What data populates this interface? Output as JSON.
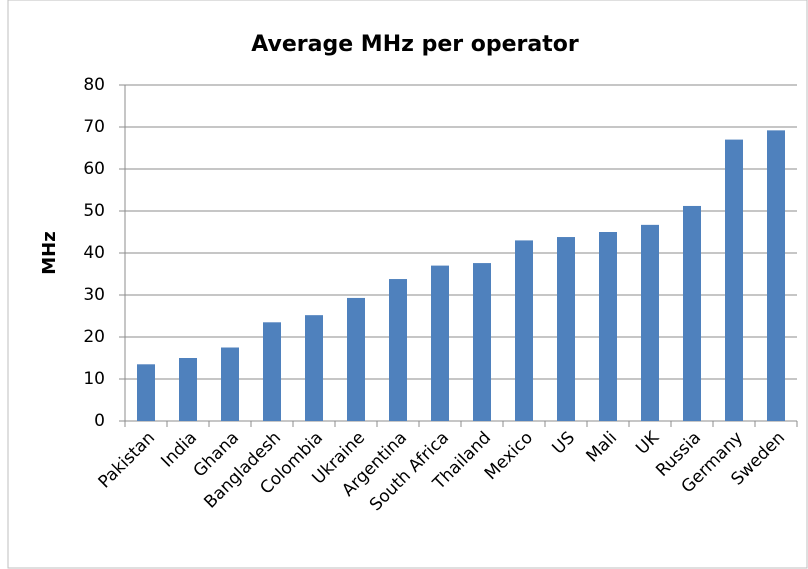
{
  "chart_data": {
    "type": "bar",
    "title": "Average MHz per operator",
    "y_label": "MHz",
    "categories": [
      "Pakistan",
      "India",
      "Ghana",
      "Bangladesh",
      "Colombia",
      "Ukraine",
      "Argentina",
      "South Africa",
      "Thailand",
      "Mexico",
      "US",
      "Mali",
      "UK",
      "Russia",
      "Germany",
      "Sweden"
    ],
    "values": [
      13.5,
      15,
      17.5,
      23.5,
      25.2,
      29.3,
      33.8,
      37,
      37.6,
      43,
      43.8,
      45,
      46.7,
      51.2,
      67,
      69.2
    ],
    "color": "#4f81bd",
    "ylim": [
      0,
      80
    ],
    "yticks": [
      0,
      10,
      20,
      30,
      40,
      50,
      60,
      70,
      80
    ],
    "grid": true
  }
}
